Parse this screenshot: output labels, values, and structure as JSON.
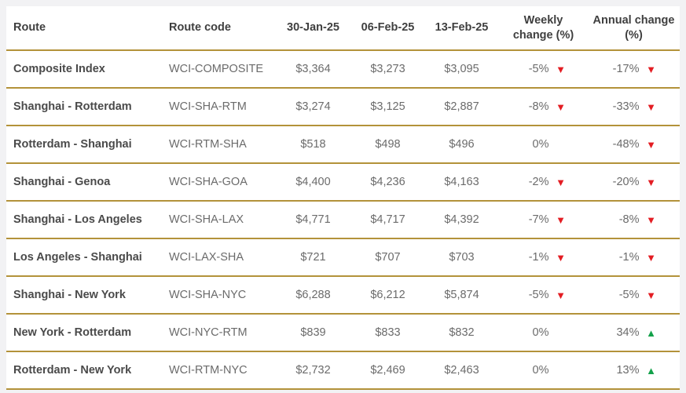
{
  "colors": {
    "page_background": "#f2f2f4",
    "table_background": "#ffffff",
    "gold_separator": "#b3923a",
    "header_text": "#3f3f3f",
    "route_text": "#4a4a4a",
    "cell_text": "#6b6b6b",
    "down_arrow_red": "#e31d23",
    "up_arrow_green": "#13a14a"
  },
  "icons": {
    "down_arrow": "▼",
    "up_arrow": "▲"
  },
  "table": {
    "headers": {
      "route": "Route",
      "route_code": "Route code",
      "date1": "30-Jan-25",
      "date2": "06-Feb-25",
      "date3": "13-Feb-25",
      "weekly": "Weekly change (%)",
      "annual": "Annual change (%)"
    },
    "rows": [
      {
        "route": "Composite Index",
        "code": "WCI-COMPOSITE",
        "v1": "$3,364",
        "v2": "$3,273",
        "v3": "$3,095",
        "weekly": {
          "pct": "-5%",
          "dir": "down",
          "glyph": "▼"
        },
        "annual": {
          "pct": "-17%",
          "dir": "down",
          "glyph": "▼"
        }
      },
      {
        "route": "Shanghai - Rotterdam",
        "code": "WCI-SHA-RTM",
        "v1": "$3,274",
        "v2": "$3,125",
        "v3": "$2,887",
        "weekly": {
          "pct": "-8%",
          "dir": "down",
          "glyph": "▼"
        },
        "annual": {
          "pct": "-33%",
          "dir": "down",
          "glyph": "▼"
        }
      },
      {
        "route": "Rotterdam - Shanghai",
        "code": "WCI-RTM-SHA",
        "v1": "$518",
        "v2": "$498",
        "v3": "$496",
        "weekly": {
          "pct": "0%",
          "dir": "none",
          "glyph": ""
        },
        "annual": {
          "pct": "-48%",
          "dir": "down",
          "glyph": "▼"
        }
      },
      {
        "route": "Shanghai - Genoa",
        "code": "WCI-SHA-GOA",
        "v1": "$4,400",
        "v2": "$4,236",
        "v3": "$4,163",
        "weekly": {
          "pct": "-2%",
          "dir": "down",
          "glyph": "▼"
        },
        "annual": {
          "pct": "-20%",
          "dir": "down",
          "glyph": "▼"
        }
      },
      {
        "route": "Shanghai - Los Angeles",
        "code": "WCI-SHA-LAX",
        "v1": "$4,771",
        "v2": "$4,717",
        "v3": "$4,392",
        "weekly": {
          "pct": "-7%",
          "dir": "down",
          "glyph": "▼"
        },
        "annual": {
          "pct": "-8%",
          "dir": "down",
          "glyph": "▼"
        }
      },
      {
        "route": "Los Angeles - Shanghai",
        "code": "WCI-LAX-SHA",
        "v1": "$721",
        "v2": "$707",
        "v3": "$703",
        "weekly": {
          "pct": "-1%",
          "dir": "down",
          "glyph": "▼"
        },
        "annual": {
          "pct": "-1%",
          "dir": "down",
          "glyph": "▼"
        }
      },
      {
        "route": "Shanghai - New York",
        "code": "WCI-SHA-NYC",
        "v1": "$6,288",
        "v2": "$6,212",
        "v3": "$5,874",
        "weekly": {
          "pct": "-5%",
          "dir": "down",
          "glyph": "▼"
        },
        "annual": {
          "pct": "-5%",
          "dir": "down",
          "glyph": "▼"
        }
      },
      {
        "route": "New York - Rotterdam",
        "code": "WCI-NYC-RTM",
        "v1": "$839",
        "v2": "$833",
        "v3": "$832",
        "weekly": {
          "pct": "0%",
          "dir": "none",
          "glyph": ""
        },
        "annual": {
          "pct": "34%",
          "dir": "up",
          "glyph": "▲"
        }
      },
      {
        "route": "Rotterdam - New York",
        "code": "WCI-RTM-NYC",
        "v1": "$2,732",
        "v2": "$2,469",
        "v3": "$2,463",
        "weekly": {
          "pct": "0%",
          "dir": "none",
          "glyph": ""
        },
        "annual": {
          "pct": "13%",
          "dir": "up",
          "glyph": "▲"
        }
      }
    ]
  },
  "chart_data": {
    "type": "table",
    "columns": [
      "Route",
      "Route code",
      "30-Jan-25",
      "06-Feb-25",
      "13-Feb-25",
      "Weekly change (%)",
      "Annual change (%)"
    ],
    "rows": [
      [
        "Composite Index",
        "WCI-COMPOSITE",
        3364,
        3273,
        3095,
        -5,
        -17
      ],
      [
        "Shanghai - Rotterdam",
        "WCI-SHA-RTM",
        3274,
        3125,
        2887,
        -8,
        -33
      ],
      [
        "Rotterdam - Shanghai",
        "WCI-RTM-SHA",
        518,
        498,
        496,
        0,
        -48
      ],
      [
        "Shanghai - Genoa",
        "WCI-SHA-GOA",
        4400,
        4236,
        4163,
        -2,
        -20
      ],
      [
        "Shanghai - Los Angeles",
        "WCI-SHA-LAX",
        4771,
        4717,
        4392,
        -7,
        -8
      ],
      [
        "Los Angeles - Shanghai",
        "WCI-LAX-SHA",
        721,
        707,
        703,
        -1,
        -1
      ],
      [
        "Shanghai - New York",
        "WCI-SHA-NYC",
        6288,
        6212,
        5874,
        -5,
        -5
      ],
      [
        "New York - Rotterdam",
        "WCI-NYC-RTM",
        839,
        833,
        832,
        0,
        34
      ],
      [
        "Rotterdam - New York",
        "WCI-RTM-NYC",
        2732,
        2469,
        2463,
        0,
        13
      ]
    ],
    "value_format": "USD",
    "notes": "Weekly and annual change columns shown as percentages with red down / green up triangle indicators"
  }
}
